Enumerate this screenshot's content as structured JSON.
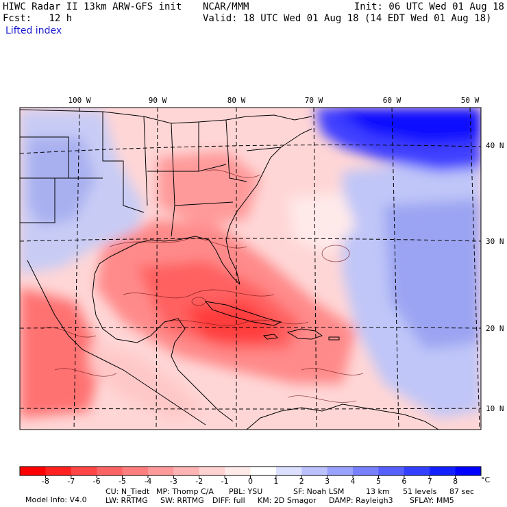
{
  "header": {
    "model_title": "HIWC Radar II 13km ARW-GFS init",
    "org": "NCAR/MMM",
    "init": "Init: 06 UTC Wed 01 Aug 18",
    "fcst_label": "Fcst:",
    "fcst_value": "12 h",
    "valid": "Valid: 18 UTC Wed 01 Aug 18 (14 EDT Wed 01 Aug 18)",
    "field": "Lifted index"
  },
  "map": {
    "lon_labels": [
      "100 W",
      "90 W",
      "80 W",
      "70 W",
      "60 W",
      "50 W"
    ],
    "lat_labels": [
      "40 N",
      "30 N",
      "20 N",
      "10 N"
    ],
    "lon_values": [
      -100,
      -90,
      -80,
      -70,
      -60,
      -50
    ],
    "lat_values": [
      40,
      30,
      20,
      10
    ]
  },
  "colorbar": {
    "tick_labels": [
      "-8",
      "-7",
      "-6",
      "-5",
      "-4",
      "-3",
      "-2",
      "-1",
      "0",
      "1",
      "2",
      "3",
      "4",
      "5",
      "6",
      "7",
      "8"
    ],
    "unit": "°C",
    "colors": [
      "#ff0000",
      "#ff2020",
      "#ff4646",
      "#ff6464",
      "#ff7f7f",
      "#ff9a9a",
      "#ffb4b4",
      "#ffd2d2",
      "#ffeaea",
      "#ffffff",
      "#dde0ff",
      "#bcc2ff",
      "#9aa2ff",
      "#7780ff",
      "#5660ff",
      "#3440ff",
      "#1220ff",
      "#0000ff"
    ]
  },
  "footer": {
    "line1": [
      {
        "k": "model-info",
        "t": "Model Info: V4.0"
      },
      {
        "k": "cu",
        "t": "CU: N_Tiedt"
      },
      {
        "k": "mp",
        "t": "MP: Thomp C/A"
      },
      {
        "k": "pbl",
        "t": "PBL: YSU"
      },
      {
        "k": "sf",
        "t": "SF: Noah LSM"
      },
      {
        "k": "res",
        "t": "13 km"
      },
      {
        "k": "levels",
        "t": "51 levels"
      },
      {
        "k": "dt",
        "t": "87 sec"
      }
    ],
    "line2": [
      {
        "k": "lw",
        "t": "LW: RRTMG"
      },
      {
        "k": "sw",
        "t": "SW: RRTMG"
      },
      {
        "k": "diff",
        "t": "DIFF: full"
      },
      {
        "k": "km",
        "t": "KM: 2D Smagor"
      },
      {
        "k": "damp",
        "t": "DAMP: Rayleigh3"
      },
      {
        "k": "sflay",
        "t": "SFLAY: MM5"
      }
    ]
  }
}
